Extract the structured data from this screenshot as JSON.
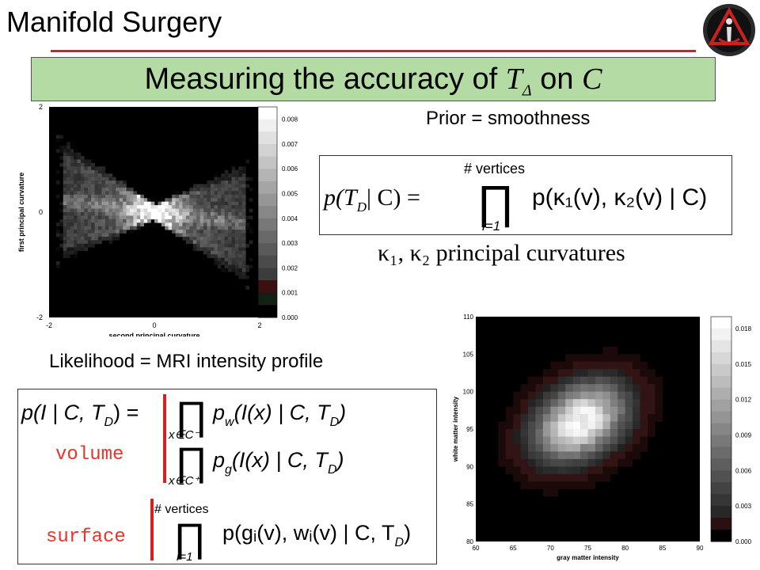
{
  "slide": {
    "heading": "Manifold Surgery",
    "title_prefix": "Measuring the accuracy of",
    "title_t": "T",
    "title_delta": "Δ",
    "title_on": "on",
    "title_c": "C",
    "prior_label": "Prior = smoothness",
    "likelihood_label": "Likelihood = MRI intensity profile",
    "principal_curvatures": "κ₁, κ₂  principal curvatures",
    "volume_label": "volume",
    "surface_label": "surface"
  },
  "prior_equation": {
    "lhs": "p(T",
    "lhs_sub": "D",
    "lhs_rest": "| C) =",
    "prod_top": "# vertices",
    "prod_bottom": "i=1",
    "rhs": "p(κ₁(v), κ₂(v) | C)"
  },
  "likelihood_equation": {
    "lhs": "p(I | C, T",
    "lhs_sub": "D",
    "lhs_rest": ") =",
    "prod1_bottom": "x∈C⁻",
    "term1_p": "p",
    "term1_sub": "w",
    "term1_rest": "(I(x) | C, T",
    "term1_sub2": "D",
    "term1_close": ")",
    "prod2_bottom": "x∈C⁺",
    "term2_p": "p",
    "term2_sub": "g",
    "term2_rest": "(I(x) | C, T",
    "term2_sub2": "D",
    "term2_close": ")",
    "prod3_top": "# vertices",
    "prod3_bottom": "i=1",
    "term3": "p(gᵢ(v), wᵢ(v) | C, T",
    "term3_sub": "D",
    "term3_close": ")"
  },
  "chart_data": [
    {
      "type": "heatmap",
      "xlabel": "second principal curvature",
      "ylabel": "first principal curvature",
      "x_ticks": [
        "-2",
        "0",
        "2"
      ],
      "y_ticks": [
        "2",
        "0",
        "-2"
      ],
      "xlim": [
        -2,
        2
      ],
      "ylim": [
        -2,
        2
      ],
      "colorbar_ticks": [
        "0.008",
        "0.007",
        "0.006",
        "0.005",
        "0.004",
        "0.003",
        "0.002",
        "0.001",
        "0.000"
      ],
      "colorbar_range": [
        0,
        0.0085
      ],
      "colormap": "gray",
      "description_shape": "bowtie",
      "peak": {
        "x": 0,
        "y": 0
      }
    },
    {
      "type": "heatmap",
      "xlabel": "gray matter intensity",
      "ylabel": "white matter intensity",
      "x_ticks": [
        "60",
        "65",
        "70",
        "75",
        "80",
        "85",
        "90"
      ],
      "y_ticks": [
        "110",
        "105",
        "100",
        "95",
        "90",
        "85",
        "80"
      ],
      "xlim": [
        60,
        90
      ],
      "ylim": [
        80,
        110
      ],
      "colorbar_ticks": [
        "0.018",
        "0.015",
        "0.012",
        "0.009",
        "0.006",
        "0.003",
        "0.000"
      ],
      "colorbar_range": [
        0,
        0.019
      ],
      "colormap": "gray",
      "peak": {
        "x": 74,
        "y": 96
      }
    }
  ],
  "colors": {
    "accent_red": "#d42020",
    "title_band": "#b5dba4",
    "keyword_red": "#e8342a"
  },
  "logo": {
    "icon": "red-i-triangle-logo"
  }
}
